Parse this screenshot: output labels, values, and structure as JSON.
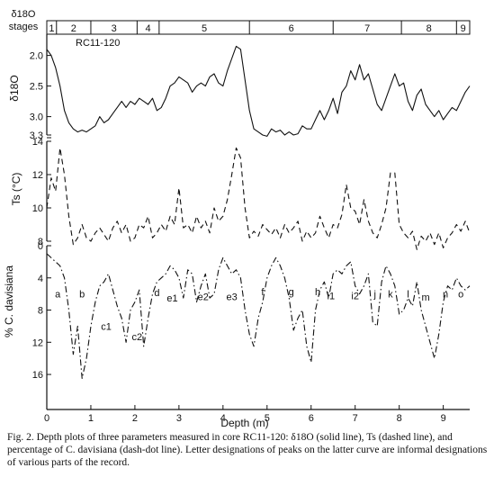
{
  "caption": "Fig. 2. Depth plots of three parameters measured in core RC11-120: δ18O (solid line), Ts (dashed line), and percentage of C. davisiana (dash-dot line). Letter designations of peaks on the latter curve are informal designations of various parts of the record.",
  "chart_data": [
    {
      "type": "line",
      "core_label": "RC11-120",
      "ylabel": "δ18O",
      "stages_label": "δ18O stages",
      "stages": [
        {
          "label": "1",
          "start": 0.0,
          "end": 0.22
        },
        {
          "label": "2",
          "start": 0.22,
          "end": 1.0
        },
        {
          "label": "3",
          "start": 1.0,
          "end": 2.05
        },
        {
          "label": "4",
          "start": 2.05,
          "end": 2.55
        },
        {
          "label": "5",
          "start": 2.55,
          "end": 4.6
        },
        {
          "label": "6",
          "start": 4.6,
          "end": 6.5
        },
        {
          "label": "7",
          "start": 6.5,
          "end": 8.05
        },
        {
          "label": "8",
          "start": 8.05,
          "end": 9.3
        },
        {
          "label": "9",
          "start": 9.3,
          "end": 9.6
        }
      ],
      "ylim": [
        3.3,
        1.8
      ],
      "yticks": [
        "2.0",
        "2.5",
        "3.0",
        "3.3"
      ],
      "x": [
        0.0,
        0.1,
        0.2,
        0.3,
        0.4,
        0.5,
        0.6,
        0.7,
        0.8,
        0.9,
        1.0,
        1.1,
        1.2,
        1.3,
        1.4,
        1.5,
        1.6,
        1.7,
        1.8,
        1.9,
        2.0,
        2.1,
        2.2,
        2.3,
        2.4,
        2.5,
        2.6,
        2.7,
        2.8,
        2.9,
        3.0,
        3.1,
        3.2,
        3.3,
        3.4,
        3.5,
        3.6,
        3.7,
        3.8,
        3.9,
        4.0,
        4.1,
        4.2,
        4.3,
        4.4,
        4.5,
        4.6,
        4.7,
        4.8,
        4.9,
        5.0,
        5.1,
        5.2,
        5.3,
        5.4,
        5.5,
        5.6,
        5.7,
        5.8,
        5.9,
        6.0,
        6.1,
        6.2,
        6.3,
        6.4,
        6.5,
        6.6,
        6.7,
        6.8,
        6.9,
        7.0,
        7.1,
        7.2,
        7.3,
        7.4,
        7.5,
        7.6,
        7.7,
        7.8,
        7.9,
        8.0,
        8.1,
        8.2,
        8.3,
        8.4,
        8.5,
        8.6,
        8.7,
        8.8,
        8.9,
        9.0,
        9.1,
        9.2,
        9.3,
        9.4,
        9.5,
        9.6
      ],
      "values": [
        1.9,
        2.0,
        2.2,
        2.5,
        2.9,
        3.1,
        3.2,
        3.25,
        3.22,
        3.25,
        3.2,
        3.15,
        3.0,
        3.1,
        3.05,
        2.95,
        2.85,
        2.75,
        2.85,
        2.75,
        2.8,
        2.7,
        2.75,
        2.8,
        2.7,
        2.9,
        2.85,
        2.7,
        2.5,
        2.45,
        2.35,
        2.4,
        2.45,
        2.6,
        2.5,
        2.45,
        2.5,
        2.35,
        2.3,
        2.45,
        2.5,
        2.25,
        2.05,
        1.85,
        1.9,
        2.4,
        2.9,
        3.2,
        3.25,
        3.3,
        3.32,
        3.2,
        3.25,
        3.22,
        3.3,
        3.25,
        3.3,
        3.28,
        3.15,
        3.2,
        3.2,
        3.05,
        2.9,
        3.05,
        2.9,
        2.7,
        2.95,
        2.6,
        2.5,
        2.25,
        2.4,
        2.15,
        2.4,
        2.3,
        2.55,
        2.8,
        2.9,
        2.7,
        2.5,
        2.3,
        2.5,
        2.45,
        2.75,
        2.9,
        2.65,
        2.55,
        2.8,
        2.9,
        3.0,
        2.9,
        3.05,
        2.95,
        2.85,
        2.9,
        2.75,
        2.6,
        2.5
      ]
    },
    {
      "type": "line",
      "ylabel": "Ts (°C)",
      "ylim": [
        8,
        14
      ],
      "yticks": [
        "8",
        "10",
        "12",
        "14"
      ],
      "x": [
        0.0,
        0.1,
        0.2,
        0.3,
        0.4,
        0.5,
        0.6,
        0.7,
        0.8,
        0.9,
        1.0,
        1.1,
        1.2,
        1.3,
        1.4,
        1.5,
        1.6,
        1.7,
        1.8,
        1.9,
        2.0,
        2.1,
        2.2,
        2.3,
        2.4,
        2.5,
        2.6,
        2.7,
        2.8,
        2.9,
        3.0,
        3.1,
        3.2,
        3.3,
        3.4,
        3.5,
        3.6,
        3.7,
        3.8,
        3.9,
        4.0,
        4.1,
        4.2,
        4.3,
        4.4,
        4.5,
        4.6,
        4.7,
        4.8,
        4.9,
        5.0,
        5.1,
        5.2,
        5.3,
        5.4,
        5.5,
        5.6,
        5.7,
        5.8,
        5.9,
        6.0,
        6.1,
        6.2,
        6.3,
        6.4,
        6.5,
        6.6,
        6.7,
        6.8,
        6.9,
        7.0,
        7.1,
        7.2,
        7.3,
        7.4,
        7.5,
        7.6,
        7.7,
        7.8,
        7.9,
        8.0,
        8.1,
        8.2,
        8.3,
        8.4,
        8.5,
        8.6,
        8.7,
        8.8,
        8.9,
        9.0,
        9.1,
        9.2,
        9.3,
        9.4,
        9.5,
        9.6
      ],
      "values": [
        10.0,
        11.8,
        11.0,
        13.6,
        12.0,
        9.5,
        7.8,
        8.2,
        9.0,
        8.2,
        8.0,
        8.5,
        8.8,
        8.4,
        8.0,
        8.8,
        9.2,
        8.5,
        9.0,
        8.0,
        8.2,
        9.0,
        8.8,
        9.5,
        8.2,
        8.5,
        9.0,
        8.6,
        9.5,
        9.0,
        11.2,
        8.8,
        9.0,
        8.5,
        9.5,
        8.8,
        9.2,
        8.5,
        10.0,
        9.2,
        9.5,
        10.5,
        12.0,
        13.6,
        13.0,
        10.0,
        8.2,
        8.6,
        8.3,
        9.0,
        8.7,
        8.4,
        8.8,
        8.2,
        9.0,
        8.5,
        8.8,
        9.2,
        8.0,
        8.6,
        8.2,
        8.5,
        9.5,
        8.8,
        8.2,
        9.0,
        8.8,
        9.6,
        11.4,
        10.0,
        9.8,
        9.0,
        10.5,
        9.2,
        8.5,
        8.2,
        9.0,
        10.0,
        12.1,
        12.1,
        9.0,
        8.5,
        8.2,
        8.6,
        7.5,
        8.3,
        8.0,
        8.5,
        7.8,
        8.5,
        7.6,
        8.2,
        8.5,
        9.0,
        8.6,
        9.2,
        8.5
      ]
    },
    {
      "type": "line",
      "ylabel": "% C. davisiana",
      "ylim": [
        0,
        17
      ],
      "yticks": [
        "0",
        "4",
        "8",
        "12",
        "16"
      ],
      "xlabel": "Depth (m)",
      "xlim": [
        0,
        9.6
      ],
      "xticks": [
        "0",
        "1",
        "2",
        "3",
        "4",
        "5",
        "6",
        "7",
        "8",
        "9"
      ],
      "x": [
        0.0,
        0.1,
        0.2,
        0.3,
        0.4,
        0.5,
        0.6,
        0.7,
        0.8,
        0.9,
        1.0,
        1.1,
        1.2,
        1.3,
        1.4,
        1.5,
        1.6,
        1.7,
        1.8,
        1.9,
        2.0,
        2.1,
        2.2,
        2.3,
        2.4,
        2.5,
        2.6,
        2.7,
        2.8,
        2.9,
        3.0,
        3.1,
        3.2,
        3.3,
        3.4,
        3.5,
        3.6,
        3.7,
        3.8,
        3.9,
        4.0,
        4.1,
        4.2,
        4.3,
        4.4,
        4.5,
        4.6,
        4.7,
        4.8,
        4.9,
        5.0,
        5.1,
        5.2,
        5.3,
        5.4,
        5.5,
        5.6,
        5.7,
        5.8,
        5.9,
        6.0,
        6.1,
        6.2,
        6.3,
        6.4,
        6.5,
        6.6,
        6.7,
        6.8,
        6.9,
        7.0,
        7.1,
        7.2,
        7.3,
        7.4,
        7.5,
        7.6,
        7.7,
        7.8,
        7.9,
        8.0,
        8.1,
        8.2,
        8.3,
        8.4,
        8.5,
        8.6,
        8.7,
        8.8,
        8.9,
        9.0,
        9.1,
        9.2,
        9.3,
        9.4,
        9.5,
        9.6
      ],
      "values": [
        1.0,
        1.5,
        2.0,
        2.5,
        4.0,
        8.0,
        13.5,
        10.0,
        16.5,
        14.0,
        10.0,
        7.0,
        5.0,
        4.5,
        3.5,
        5.5,
        7.5,
        9.0,
        12.0,
        8.0,
        7.0,
        5.5,
        12.5,
        9.0,
        6.0,
        4.5,
        4.0,
        3.5,
        2.5,
        3.0,
        4.0,
        6.5,
        3.0,
        3.5,
        7.0,
        5.0,
        3.5,
        6.5,
        6.0,
        3.0,
        1.5,
        2.5,
        3.5,
        3.0,
        4.0,
        8.0,
        11.0,
        12.5,
        9.0,
        7.0,
        4.0,
        2.5,
        1.5,
        2.5,
        4.0,
        6.5,
        10.5,
        9.0,
        8.0,
        12.5,
        14.5,
        8.0,
        5.5,
        4.5,
        6.5,
        3.5,
        3.0,
        3.5,
        2.5,
        2.0,
        5.0,
        6.0,
        5.0,
        3.5,
        9.5,
        10.0,
        4.5,
        2.5,
        3.5,
        5.0,
        8.5,
        8.0,
        6.5,
        7.5,
        4.5,
        8.0,
        10.0,
        12.0,
        14.0,
        11.0,
        7.0,
        5.0,
        5.5,
        4.0,
        5.0,
        5.5,
        5.0
      ],
      "annotations": [
        {
          "label": "a",
          "x": 0.25,
          "y": 6.0
        },
        {
          "label": "b",
          "x": 0.8,
          "y": 6.0
        },
        {
          "label": "c1",
          "x": 1.35,
          "y": 10.0
        },
        {
          "label": "c2",
          "x": 2.05,
          "y": 11.3
        },
        {
          "label": "d",
          "x": 2.5,
          "y": 5.8
        },
        {
          "label": "e1",
          "x": 2.85,
          "y": 6.5
        },
        {
          "label": "e2",
          "x": 3.55,
          "y": 6.3
        },
        {
          "label": "e3",
          "x": 4.2,
          "y": 6.3
        },
        {
          "label": "f",
          "x": 4.9,
          "y": 5.7
        },
        {
          "label": "g",
          "x": 5.55,
          "y": 5.7
        },
        {
          "label": "h",
          "x": 6.15,
          "y": 5.7
        },
        {
          "label": "i1",
          "x": 6.45,
          "y": 6.2
        },
        {
          "label": "i2",
          "x": 7.0,
          "y": 6.2
        },
        {
          "label": "j",
          "x": 7.45,
          "y": 6.0
        },
        {
          "label": "k",
          "x": 7.8,
          "y": 6.0
        },
        {
          "label": "l",
          "x": 8.2,
          "y": 6.0
        },
        {
          "label": "m",
          "x": 8.6,
          "y": 6.4
        },
        {
          "label": "n",
          "x": 9.05,
          "y": 6.0
        },
        {
          "label": "o",
          "x": 9.4,
          "y": 6.0
        }
      ]
    }
  ]
}
